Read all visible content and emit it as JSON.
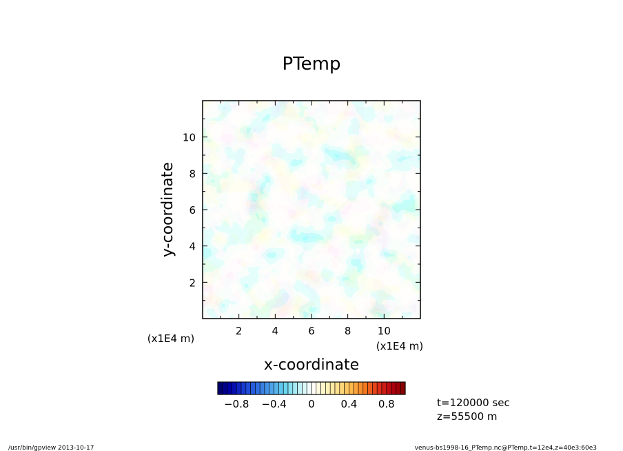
{
  "chart_data": {
    "type": "heatmap",
    "title": "PTemp",
    "xlabel": "x-coordinate",
    "ylabel": "y-coordinate",
    "x_scale_label": "(x1E4 m)",
    "y_scale_label": "(x1E4 m)",
    "xlim": [
      0,
      12
    ],
    "ylim": [
      0,
      12
    ],
    "x_ticks": [
      2,
      4,
      6,
      8,
      10
    ],
    "y_ticks": [
      2,
      4,
      6,
      8,
      10
    ],
    "x_tick_labels": [
      "2",
      "4",
      "6",
      "8",
      "10"
    ],
    "y_tick_labels": [
      "2",
      "4",
      "6",
      "8",
      "10"
    ],
    "colorbar": {
      "min": -1.0,
      "max": 1.0,
      "levels": 40,
      "tick_values": [
        -0.8,
        -0.4,
        0,
        0.4,
        0.8
      ],
      "tick_labels": [
        "−0.8",
        "−0.4",
        "0",
        "0.4",
        "0.8"
      ],
      "colors": [
        "#000066",
        "#0000aa",
        "#1a3fd6",
        "#2f6fe0",
        "#4ea3ea",
        "#66d4f0",
        "#b8f0f5",
        "#ffffff",
        "#fff6c4",
        "#ffe08a",
        "#ffb84a",
        "#f57a1e",
        "#e0301a",
        "#b3000f",
        "#800000"
      ]
    },
    "field_value_range": [
      -0.35,
      0.2
    ],
    "grid": false
  },
  "info": {
    "time": "t=120000 sec",
    "height": "z=55500 m"
  },
  "footer": {
    "left": "/usr/bin/gpview   2013-10-17",
    "right": "venus-bs1998-16_PTemp.nc@PTemp,t=12e4,z=40e3:60e3"
  }
}
